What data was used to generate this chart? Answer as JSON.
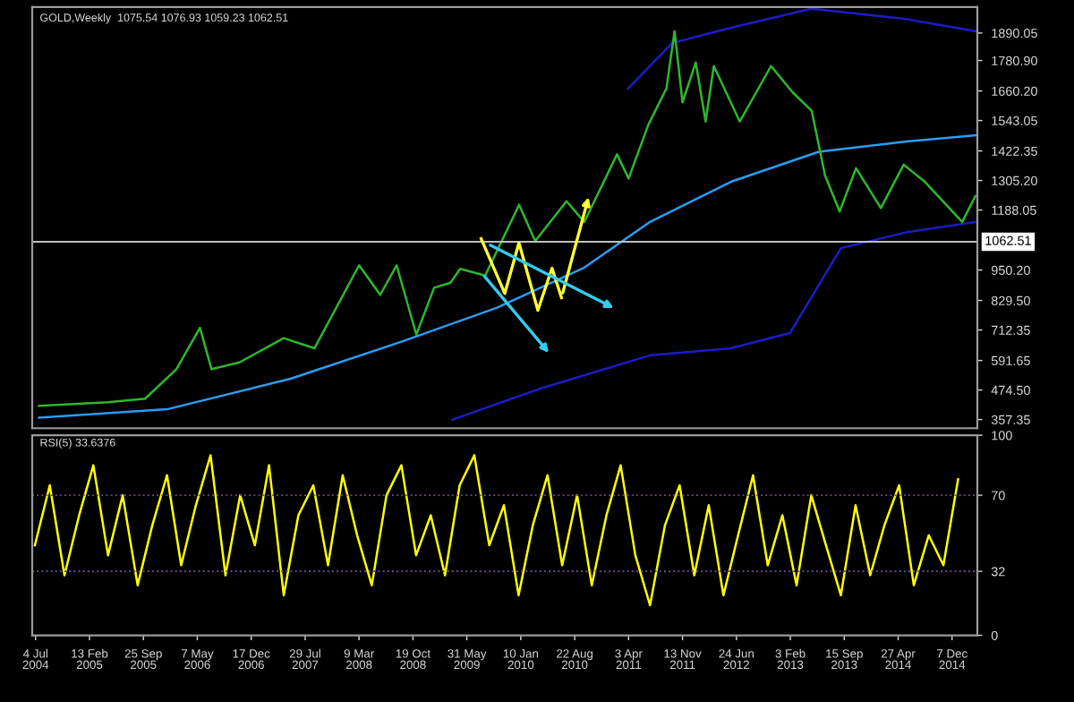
{
  "chart_data": [
    {
      "type": "line",
      "title": "GOLD,Weekly  1075.54 1076.93 1059.23 1062.51",
      "xlim": [
        "2004-06-20",
        "2015-03-22"
      ],
      "ylim": [
        323,
        1993
      ],
      "yticks": [
        {
          "value": 357.35,
          "label": "357.35"
        },
        {
          "value": 474.5,
          "label": "474.50"
        },
        {
          "value": 591.65,
          "label": "591.65"
        },
        {
          "value": 712.35,
          "label": "712.35"
        },
        {
          "value": 829.5,
          "label": "829.50"
        },
        {
          "value": 950.2,
          "label": "950.20"
        },
        {
          "value": 1188.05,
          "label": "1188.05"
        },
        {
          "value": 1305.2,
          "label": "1305.20"
        },
        {
          "value": 1422.35,
          "label": "1422.35"
        },
        {
          "value": 1543.05,
          "label": "1543.05"
        },
        {
          "value": 1660.2,
          "label": "1660.20"
        },
        {
          "value": 1780.9,
          "label": "1780.90"
        },
        {
          "value": 1890.05,
          "label": "1890.05"
        }
      ],
      "tick_labels": "y",
      "legend": false,
      "grid": false,
      "line_style": "solid",
      "marker": "none",
      "ref_lines": [
        {
          "axis": "y",
          "value": 1062.51,
          "label": "1062.51",
          "color": "#c0c0c0",
          "line_style": "solid"
        }
      ],
      "series": [
        {
          "color": "#2a9df4",
          "x": [
            "2004-07-18",
            "2006-01-01",
            "2007-06-01",
            "2008-09-01",
            "2009-10-01",
            "2010-10-01",
            "2011-07-01",
            "2012-06-01",
            "2013-06-01",
            "2014-06-01",
            "2015-03-14"
          ],
          "values": [
            365,
            398,
            520,
            666,
            800,
            960,
            1141,
            1300,
            1419,
            1460,
            1484
          ]
        },
        {
          "color": "#1c1cc8",
          "x": [
            "2009-04-01",
            "2010-04-01",
            "2011-07-01",
            "2012-06-01",
            "2013-02-01",
            "2013-09-01",
            "2014-06-01",
            "2015-03-14"
          ],
          "values": [
            357,
            480,
            612,
            640,
            700,
            1037,
            1100,
            1141
          ]
        },
        {
          "color": "#1c1cc8",
          "x": [
            "2011-04-01",
            "2011-10-01",
            "2012-06-01",
            "2013-05-01",
            "2014-06-01",
            "2015-03-14"
          ],
          "values": [
            1670,
            1850,
            1911,
            1986,
            1945,
            1897
          ]
        },
        {
          "color": "#2db82d",
          "x": [
            "2004-07-18",
            "2005-05-01",
            "2005-10-02",
            "2006-02-09",
            "2006-05-18",
            "2006-07-05",
            "2006-10-29",
            "2007-05-01",
            "2007-09-06",
            "2008-03-09",
            "2008-06-05",
            "2008-08-12",
            "2008-11-02",
            "2009-01-15",
            "2009-03-24",
            "2009-05-03",
            "2009-08-15",
            "2010-01-03",
            "2010-03-11",
            "2010-07-19",
            "2010-10-01",
            "2011-02-14",
            "2011-04-03",
            "2011-06-24",
            "2011-09-07",
            "2011-10-11",
            "2011-11-13",
            "2012-01-07",
            "2012-02-17",
            "2012-03-22",
            "2012-07-08",
            "2012-11-15",
            "2013-02-11",
            "2013-05-03",
            "2013-06-27",
            "2013-08-27",
            "2013-11-03",
            "2014-02-14",
            "2014-05-20",
            "2014-08-17",
            "2015-01-18",
            "2015-03-14"
          ],
          "values": [
            412,
            426,
            440,
            557,
            721,
            557,
            584,
            680,
            640,
            969,
            852,
            969,
            694,
            880,
            900,
            955,
            928,
            1209,
            1065,
            1223,
            1141,
            1409,
            1313,
            1526,
            1670,
            1897,
            1615,
            1773,
            1539,
            1759,
            1539,
            1759,
            1656,
            1581,
            1326,
            1182,
            1354,
            1196,
            1368,
            1299,
            1141,
            1244
          ]
        }
      ]
    },
    {
      "type": "line",
      "title": "RSI(5) 33.6376",
      "xlim": [
        "2004-06-20",
        "2015-03-22"
      ],
      "ylim": [
        0,
        100
      ],
      "yticks": [
        0,
        32,
        70,
        100
      ],
      "legend": false,
      "grid": false,
      "line_style": "solid",
      "marker": "none",
      "xticks": [
        {
          "value": "2004-07-04",
          "label": "4 Jul 2004"
        },
        {
          "value": "2005-02-13",
          "label": "13 Feb 2005"
        },
        {
          "value": "2005-09-25",
          "label": "25 Sep 2005"
        },
        {
          "value": "2006-05-07",
          "label": "7 May 2006"
        },
        {
          "value": "2006-12-17",
          "label": "17 Dec 2006"
        },
        {
          "value": "2007-07-29",
          "label": "29 Jul 2007"
        },
        {
          "value": "2008-03-09",
          "label": "9 Mar 2008"
        },
        {
          "value": "2008-10-19",
          "label": "19 Oct 2008"
        },
        {
          "value": "2009-05-31",
          "label": "31 May 2009"
        },
        {
          "value": "2010-01-10",
          "label": "10 Jan 2010"
        },
        {
          "value": "2010-08-22",
          "label": "22 Aug 2010"
        },
        {
          "value": "2011-04-03",
          "label": "3 Apr 2011"
        },
        {
          "value": "2011-11-13",
          "label": "13 Nov 2011"
        },
        {
          "value": "2012-06-24",
          "label": "24 Jun 2012"
        },
        {
          "value": "2013-02-03",
          "label": "3 Feb 2013"
        },
        {
          "value": "2013-09-15",
          "label": "15 Sep 2013"
        },
        {
          "value": "2014-04-27",
          "label": "27 Apr 2014"
        },
        {
          "value": "2014-12-07",
          "label": "7 Dec 2014"
        }
      ],
      "ref_lines": [
        {
          "axis": "y",
          "value": 70,
          "color": "#6a4a8a",
          "line_style": "dotted"
        },
        {
          "axis": "y",
          "value": 32,
          "color": "#6a4a8a",
          "line_style": "dotted"
        }
      ],
      "series": [
        {
          "color": "#ffff00",
          "x": [
            "2004-07",
            "2004-09",
            "2004-11",
            "2005-01",
            "2005-03",
            "2005-05",
            "2005-07",
            "2005-09",
            "2005-11",
            "2006-01",
            "2006-03",
            "2006-05",
            "2006-07",
            "2006-09",
            "2006-11",
            "2007-01",
            "2007-03",
            "2007-05",
            "2007-07",
            "2007-09",
            "2007-11",
            "2008-01",
            "2008-03",
            "2008-05",
            "2008-07",
            "2008-09",
            "2008-11",
            "2009-01",
            "2009-03",
            "2009-05",
            "2009-07",
            "2009-09",
            "2009-11",
            "2010-01",
            "2010-03",
            "2010-05",
            "2010-07",
            "2010-09",
            "2010-11",
            "2011-01",
            "2011-03",
            "2011-05",
            "2011-07",
            "2011-09",
            "2011-11",
            "2012-01",
            "2012-03",
            "2012-05",
            "2012-07",
            "2012-09",
            "2012-11",
            "2013-01",
            "2013-03",
            "2013-05",
            "2013-07",
            "2013-09",
            "2013-11",
            "2014-01",
            "2014-03",
            "2014-05",
            "2014-07",
            "2014-09",
            "2014-11",
            "2015-01"
          ],
          "values": [
            45,
            75,
            30,
            60,
            85,
            40,
            70,
            25,
            55,
            80,
            35,
            65,
            90,
            30,
            70,
            45,
            85,
            20,
            60,
            75,
            35,
            80,
            50,
            25,
            70,
            85,
            40,
            60,
            30,
            75,
            90,
            45,
            65,
            20,
            55,
            80,
            35,
            70,
            25,
            60,
            85,
            40,
            15,
            55,
            75,
            30,
            65,
            20,
            50,
            80,
            35,
            60,
            25,
            70,
            45,
            20,
            65,
            30,
            55,
            75,
            25,
            50,
            35,
            78
          ]
        }
      ]
    }
  ]
}
